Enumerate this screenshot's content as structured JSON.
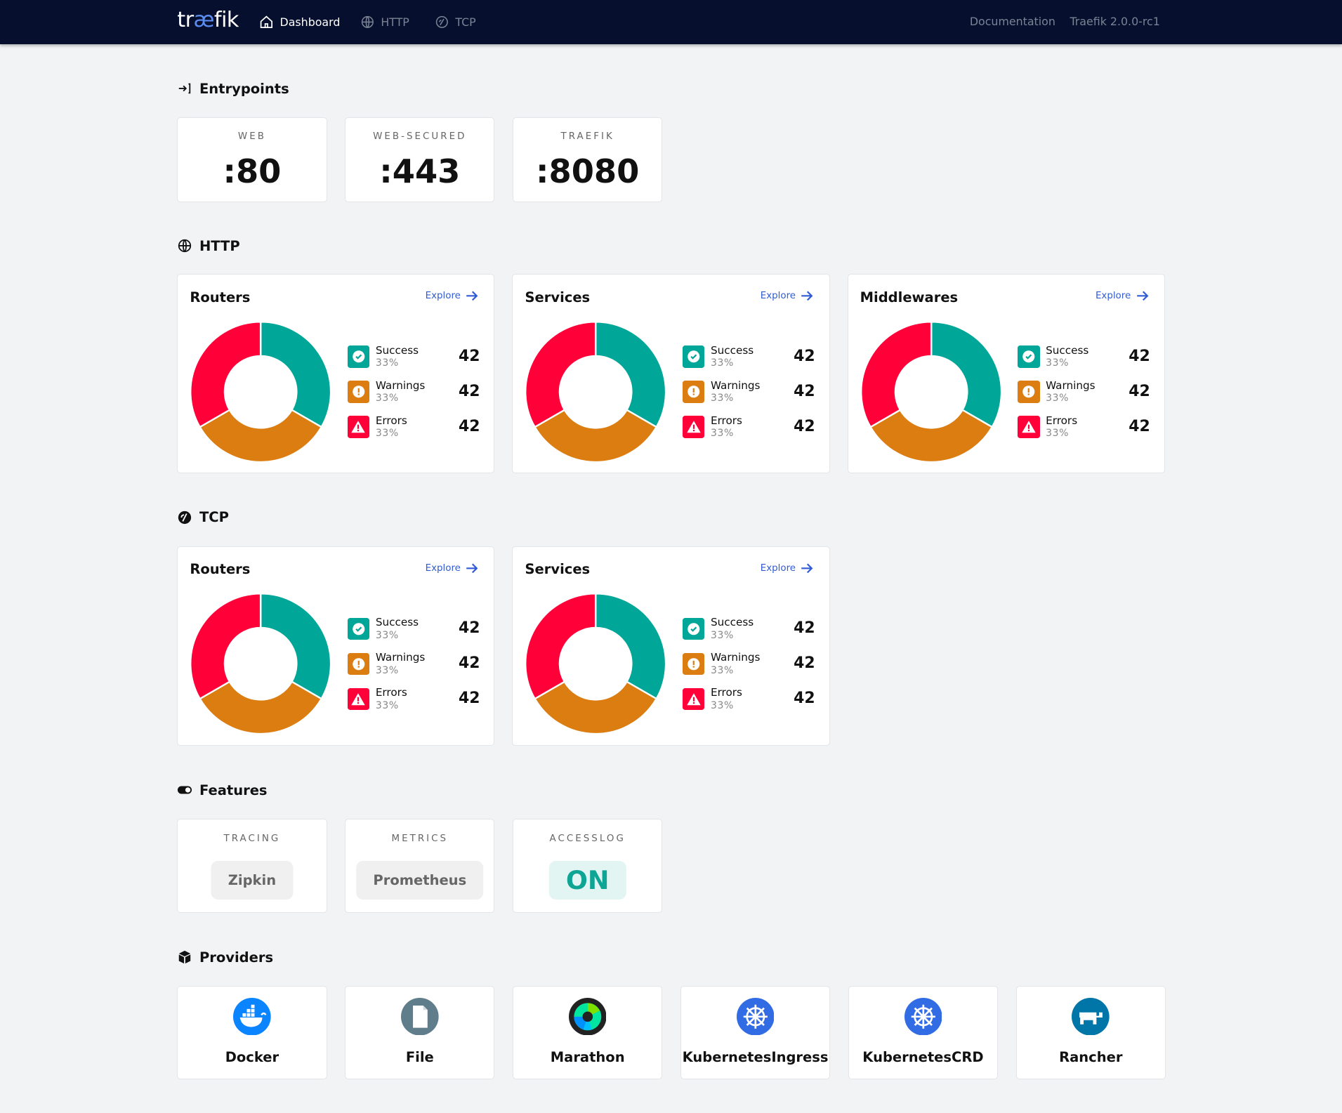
{
  "nav": {
    "logo": "traefik",
    "links": [
      {
        "label": "Dashboard",
        "icon": "home-icon",
        "active": true
      },
      {
        "label": "HTTP",
        "icon": "globe-icon",
        "active": false
      },
      {
        "label": "TCP",
        "icon": "tcp-icon",
        "active": false
      }
    ],
    "documentation": "Documentation",
    "version": "Traefik 2.0.0-rc1"
  },
  "colors": {
    "success": "#00a697",
    "warning": "#db7d11",
    "error": "#ff0039",
    "accent": "#2f5cd6",
    "navbar": "#06102e"
  },
  "entrypoints": {
    "title": "Entrypoints",
    "items": [
      {
        "name": "WEB",
        "port": ":80"
      },
      {
        "name": "WEB-SECURED",
        "port": ":443"
      },
      {
        "name": "TRAEFIK",
        "port": ":8080"
      }
    ]
  },
  "http": {
    "title": "HTTP",
    "cards": [
      {
        "title": "Routers",
        "explore": "Explore",
        "stats": [
          {
            "label": "Success",
            "percent": "33%",
            "value": 42
          },
          {
            "label": "Warnings",
            "percent": "33%",
            "value": 42
          },
          {
            "label": "Errors",
            "percent": "33%",
            "value": 42
          }
        ]
      },
      {
        "title": "Services",
        "explore": "Explore",
        "stats": [
          {
            "label": "Success",
            "percent": "33%",
            "value": 42
          },
          {
            "label": "Warnings",
            "percent": "33%",
            "value": 42
          },
          {
            "label": "Errors",
            "percent": "33%",
            "value": 42
          }
        ]
      },
      {
        "title": "Middlewares",
        "explore": "Explore",
        "stats": [
          {
            "label": "Success",
            "percent": "33%",
            "value": 42
          },
          {
            "label": "Warnings",
            "percent": "33%",
            "value": 42
          },
          {
            "label": "Errors",
            "percent": "33%",
            "value": 42
          }
        ]
      }
    ]
  },
  "tcp": {
    "title": "TCP",
    "cards": [
      {
        "title": "Routers",
        "explore": "Explore",
        "stats": [
          {
            "label": "Success",
            "percent": "33%",
            "value": 42
          },
          {
            "label": "Warnings",
            "percent": "33%",
            "value": 42
          },
          {
            "label": "Errors",
            "percent": "33%",
            "value": 42
          }
        ]
      },
      {
        "title": "Services",
        "explore": "Explore",
        "stats": [
          {
            "label": "Success",
            "percent": "33%",
            "value": 42
          },
          {
            "label": "Warnings",
            "percent": "33%",
            "value": 42
          },
          {
            "label": "Errors",
            "percent": "33%",
            "value": 42
          }
        ]
      }
    ]
  },
  "features": {
    "title": "Features",
    "items": [
      {
        "name": "TRACING",
        "value": "Zipkin",
        "on": false
      },
      {
        "name": "METRICS",
        "value": "Prometheus",
        "on": false
      },
      {
        "name": "ACCESSLOG",
        "value": "ON",
        "on": true
      }
    ]
  },
  "providers": {
    "title": "Providers",
    "items": [
      {
        "name": "Docker",
        "icon": "docker-icon"
      },
      {
        "name": "File",
        "icon": "file-icon"
      },
      {
        "name": "Marathon",
        "icon": "marathon-icon"
      },
      {
        "name": "KubernetesIngress",
        "icon": "kubernetes-icon"
      },
      {
        "name": "KubernetesCRD",
        "icon": "kubernetes-icon"
      },
      {
        "name": "Rancher",
        "icon": "rancher-icon"
      }
    ]
  }
}
